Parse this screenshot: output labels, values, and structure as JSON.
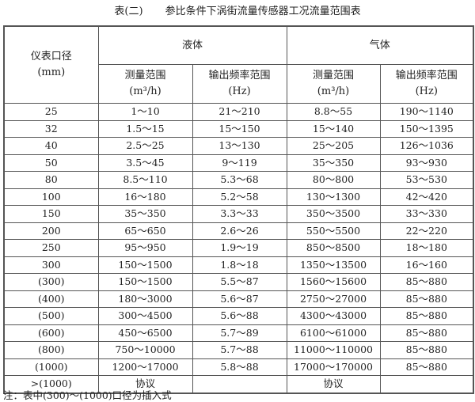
{
  "title": {
    "label": "表(二)",
    "text": "参比条件下涡街流量传感器工况流量范围表"
  },
  "header": {
    "diameter": "仪表口径",
    "diameter_unit": "(mm)",
    "liquid": "液体",
    "gas": "气体",
    "range": "测量范围",
    "range_unit": "(m³/h)",
    "freq": "输出频率范围",
    "freq_unit": "(Hz)"
  },
  "rows": [
    [
      "25",
      "1～10",
      "21～210",
      "8.8～55",
      "190～1140"
    ],
    [
      "32",
      "1.5～15",
      "15～150",
      "15～140",
      "150～1395"
    ],
    [
      "40",
      "2.5～25",
      "13～130",
      "25～205",
      "126～1036"
    ],
    [
      "50",
      "3.5～45",
      "9～119",
      "35～350",
      "93～930"
    ],
    [
      "80",
      "8.5～110",
      "5.3～68",
      "80～800",
      "53～530"
    ],
    [
      "100",
      "16～180",
      "5.2～58",
      "130～1300",
      "42～420"
    ],
    [
      "150",
      "35～350",
      "3.3～33",
      "350～3500",
      "33～330"
    ],
    [
      "200",
      "65～650",
      "2.6～26",
      "550～5500",
      "22～220"
    ],
    [
      "250",
      "95～950",
      "1.9～19",
      "850～8500",
      "18～180"
    ],
    [
      "300",
      "150～1500",
      "1.8～18",
      "1350～13500",
      "16～160"
    ],
    [
      "(300)",
      "150～1500",
      "5.5～87",
      "1560～15600",
      "85～880"
    ],
    [
      "(400)",
      "180～3000",
      "5.6～87",
      "2750～27000",
      "85～880"
    ],
    [
      "(500)",
      "300～4500",
      "5.6～88",
      "4300～43000",
      "85～880"
    ],
    [
      "(600)",
      "450～6500",
      "5.7～89",
      "6100～61000",
      "85～880"
    ],
    [
      "(800)",
      "750～10000",
      "5.7～88",
      "11000～110000",
      "85～880"
    ],
    [
      "(1000)",
      "1200～17000",
      "5.8～88",
      "17000～170000",
      "85～880"
    ],
    [
      ">(1000)",
      "协议",
      "",
      "协议",
      ""
    ]
  ],
  "note": "注：表中(300)～(1000)口径为插入式"
}
